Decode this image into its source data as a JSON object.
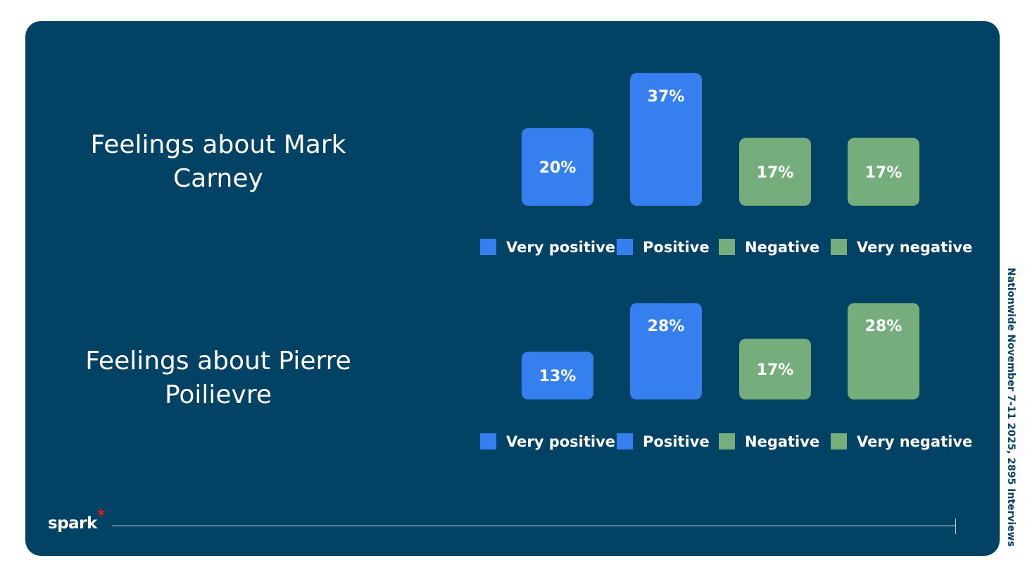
{
  "chart_data": [
    {
      "type": "bar",
      "title": "Feelings about Mark Carney",
      "categories": [
        "Very positive",
        "Positive",
        "Negative",
        "Very negative"
      ],
      "values": [
        20,
        37,
        17,
        17
      ],
      "labels": [
        "20%",
        "37%",
        "17%",
        "17%"
      ],
      "colors": [
        "#3580ee",
        "#3580ee",
        "#75ad7d",
        "#75ad7d"
      ],
      "ylim": [
        0,
        40
      ],
      "legend_position": "bottom"
    },
    {
      "type": "bar",
      "title": "Feelings about Pierre Poilievre",
      "categories": [
        "Very positive",
        "Positive",
        "Negative",
        "Very negative"
      ],
      "values": [
        13,
        28,
        17,
        28
      ],
      "labels": [
        "13%",
        "28%",
        "17%",
        "28%"
      ],
      "colors": [
        "#3580ee",
        "#3580ee",
        "#75ad7d",
        "#75ad7d"
      ],
      "ylim": [
        0,
        40
      ],
      "legend_position": "bottom"
    }
  ],
  "side_note": "Nationwide November 7-11 2025, 2895 Interviews",
  "logo": {
    "text": "spark",
    "mark": "*"
  },
  "colors": {
    "panel": "#024264",
    "positive": "#3580ee",
    "negative": "#75ad7d"
  }
}
